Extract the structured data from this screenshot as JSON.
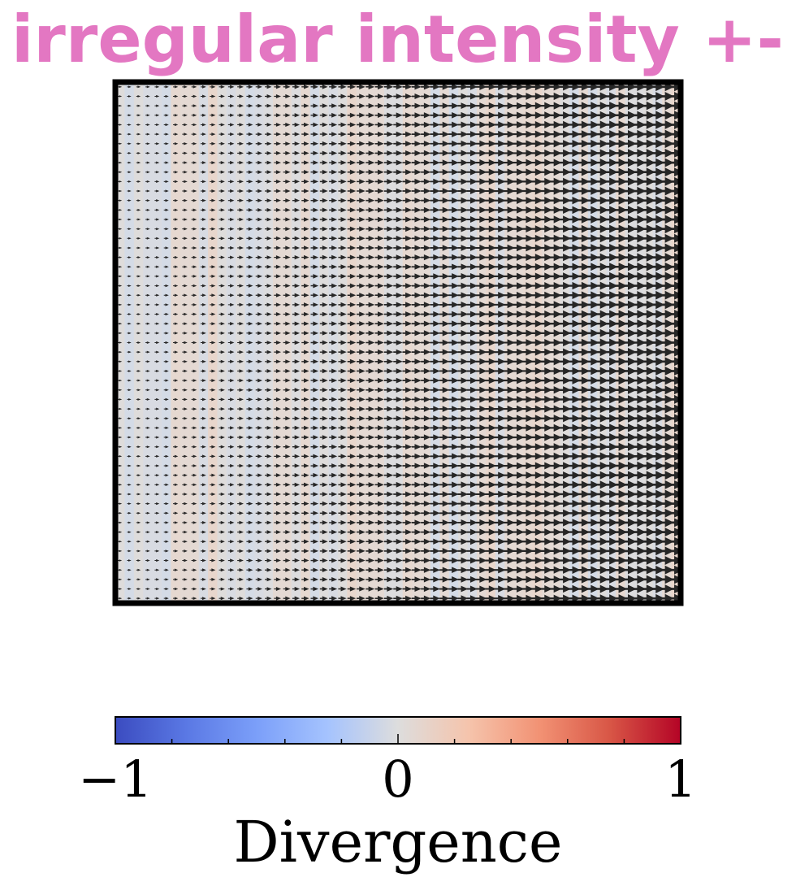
{
  "chart_data": {
    "type": "quiver",
    "title": "irregular intensity +-",
    "title_color": "#e377c2",
    "field": {
      "direction": "+x (all arrows point right)",
      "grid_columns": 61,
      "grid_rows": 55,
      "magnitude_trend": "arrow size increases from left to right",
      "arrow_color": "#262626"
    },
    "background": "divergence field mapped to colormap, near 0 with slight vertical striping",
    "axes": {
      "ticks_visible": false,
      "frame": "thick black border"
    },
    "colorbar": {
      "label": "Divergence",
      "colormap": "coolwarm",
      "range": [
        -1,
        1
      ],
      "major_ticks": [
        -1,
        0,
        1
      ],
      "tick_labels": [
        "−1",
        "0",
        "1"
      ],
      "minor_tick_step": 0.2,
      "orientation": "horizontal",
      "placement": "bottom"
    }
  }
}
